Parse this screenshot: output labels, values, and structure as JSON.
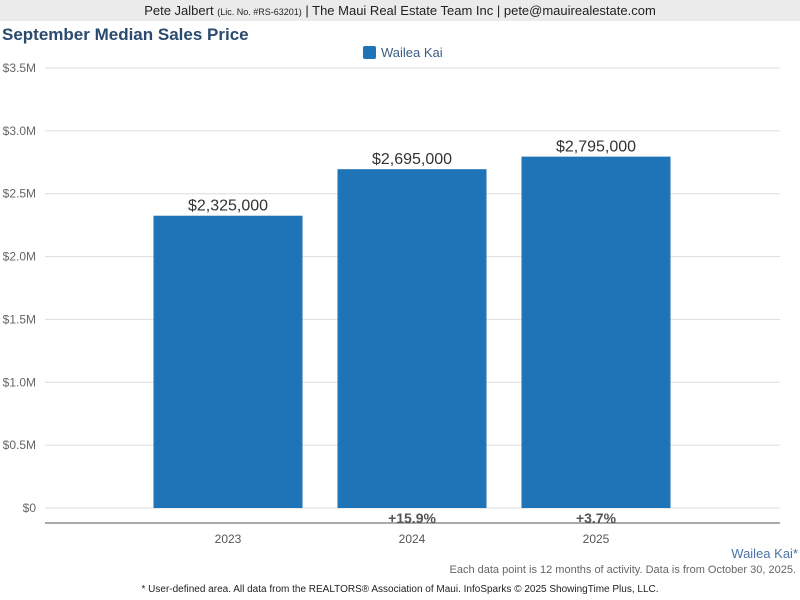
{
  "header": {
    "agent": "Pete Jalbert",
    "license": "(Lic. No. #RS-63201)",
    "company": "| The Maui Real Estate Team Inc | pete@mauirealestate.com"
  },
  "chart_data": {
    "type": "bar",
    "title": "September Median Sales Price",
    "categories": [
      "2023",
      "2024",
      "2025"
    ],
    "series": [
      {
        "name": "Wailea Kai",
        "color": "#1f73b7",
        "values": [
          2325000,
          2695000,
          2795000
        ]
      }
    ],
    "data_labels": [
      "$2,325,000",
      "$2,695,000",
      "$2,795,000"
    ],
    "changes": [
      "",
      "+15.9%",
      "+3.7%"
    ],
    "yticks": [
      "$0",
      "$0.5M",
      "$1.0M",
      "$1.5M",
      "$2.0M",
      "$2.5M",
      "$3.0M",
      "$3.5M"
    ],
    "ylim": [
      0,
      3500000
    ],
    "grid": true,
    "legend": "top-center"
  },
  "area_label": "Wailea Kai*",
  "note": "Each data point is 12 months of activity. Data is from October 30, 2025.",
  "footer": "* User-defined area. All data from the REALTORS® Association of Maui. InfoSparks © 2025 ShowingTime Plus, LLC."
}
